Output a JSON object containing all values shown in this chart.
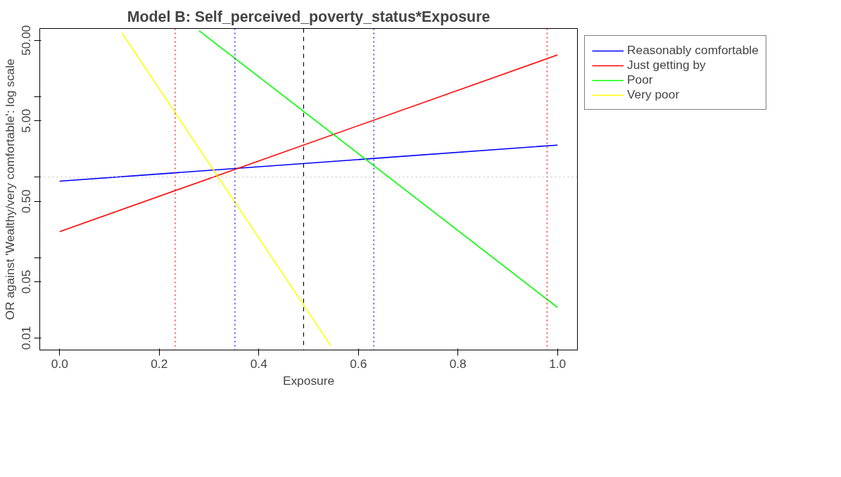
{
  "chart_data": {
    "type": "line",
    "title": "Model B: Self_perceived_poverty_status*Exposure",
    "xlabel": "Exposure",
    "ylabel": "OR against 'Wealthy/very comfortable': log scale",
    "log": "y",
    "grid": false,
    "legend": "right",
    "marker": "none",
    "line_style": "solid",
    "xlim": [
      -0.04,
      1.04
    ],
    "ylim": [
      0.0071,
      70.3
    ],
    "xticks": [
      {
        "value": 0,
        "label": "0.0"
      },
      {
        "value": 0.2,
        "label": "0.2"
      },
      {
        "value": 0.4,
        "label": "0.4"
      },
      {
        "value": 0.6,
        "label": "0.6"
      },
      {
        "value": 0.8,
        "label": "0.8"
      },
      {
        "value": 1,
        "label": "1.0"
      }
    ],
    "yticks": [
      {
        "value": 0.01,
        "label": "0.01"
      },
      {
        "value": 0.05,
        "label": "0.05"
      },
      {
        "value": 0.1,
        "label": null
      },
      {
        "value": 0.5,
        "label": "0.50"
      },
      {
        "value": 1,
        "label": null
      },
      {
        "value": 5,
        "label": "5.00"
      },
      {
        "value": 10,
        "label": null
      },
      {
        "value": 50,
        "label": "50.00"
      }
    ],
    "series": [
      {
        "name": "Reasonably comfortable",
        "color": "#0000ff",
        "x": [
          0,
          1
        ],
        "values": [
          0.89,
          2.5
        ]
      },
      {
        "name": "Just getting by",
        "color": "#ff0000",
        "x": [
          0,
          1
        ],
        "values": [
          0.21,
          33
        ]
      },
      {
        "name": "Poor",
        "color": "#00ff00",
        "x": [
          0.28,
          1
        ],
        "values": [
          66,
          0.024
        ]
      },
      {
        "name": "Very poor",
        "color": "#ffff00",
        "x": [
          0.125,
          0.545
        ],
        "values": [
          62,
          0.008
        ]
      }
    ],
    "ref_lines": [
      {
        "axis": "x",
        "value": 0.232,
        "color": "#ff0000",
        "line_style": "dotted"
      },
      {
        "axis": "x",
        "value": 0.352,
        "color": "#0000ff",
        "line_style": "dotted"
      },
      {
        "axis": "x",
        "value": 0.49,
        "color": "#000000",
        "line_style": "dashed"
      },
      {
        "axis": "x",
        "value": 0.631,
        "color": "#0000ff",
        "line_style": "dotted"
      },
      {
        "axis": "x",
        "value": 0.979,
        "color": "#ff0000",
        "line_style": "dotted"
      },
      {
        "axis": "y",
        "value": 1,
        "color": "#bebebe",
        "line_style": "dotted"
      }
    ]
  }
}
